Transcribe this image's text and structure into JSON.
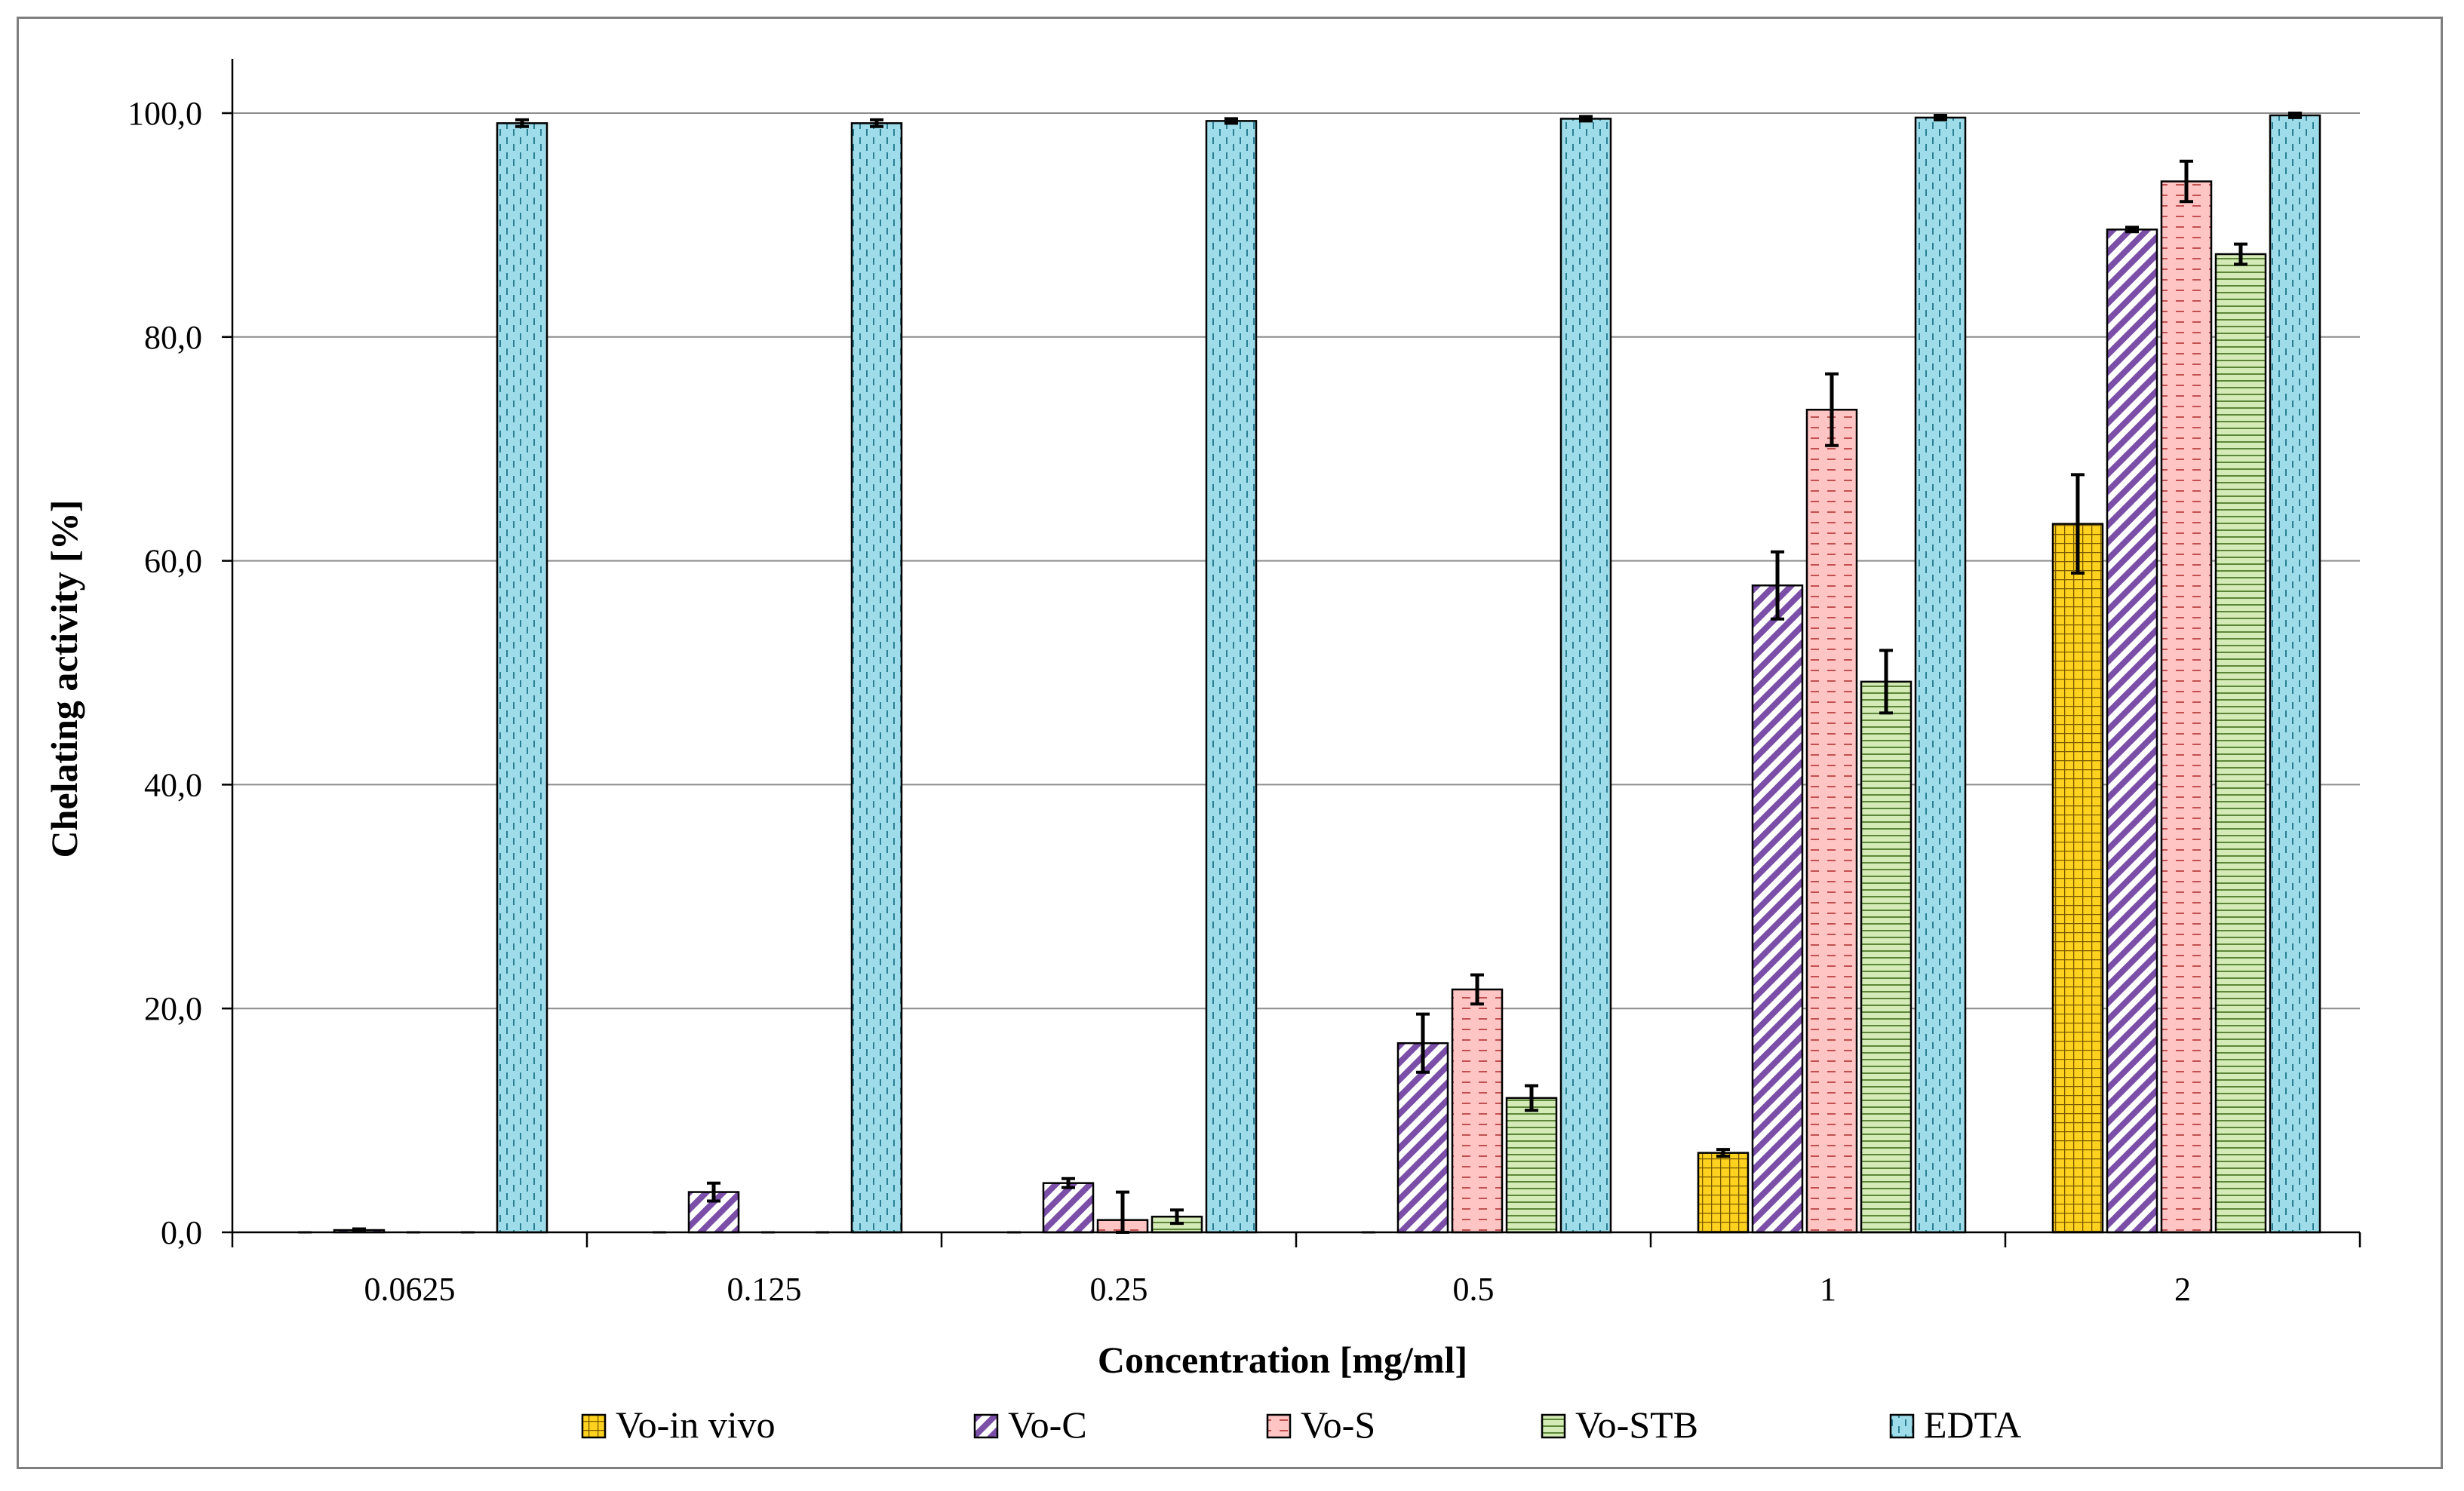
{
  "chart_data": {
    "type": "bar",
    "xlabel": "Concentration [mg/ml]",
    "ylabel": "Chelating activity  [%]",
    "ylim": [
      0,
      100
    ],
    "yticks": [
      0,
      20,
      40,
      60,
      80,
      100
    ],
    "ytick_labels": [
      "0,0",
      "20,0",
      "40,0",
      "60,0",
      "80,0",
      "100,0"
    ],
    "grid": "horizontal",
    "legend": "bottom",
    "categories": [
      "0.0625",
      "0.125",
      "0.25",
      "0.5",
      "1",
      "2"
    ],
    "series": [
      {
        "name": "Vo-in vivo",
        "values": [
          0,
          0,
          0,
          0,
          7.1,
          63.3
        ],
        "errors": [
          0,
          0,
          0,
          0,
          0.3,
          4.4
        ],
        "color": "#ffd21f",
        "pattern": "grid"
      },
      {
        "name": "Vo-C",
        "values": [
          0.2,
          3.6,
          4.4,
          16.9,
          57.8,
          89.6
        ],
        "errors": [
          0.1,
          0.8,
          0.4,
          2.6,
          3.0,
          0.2
        ],
        "color": "#c9b6e8",
        "pattern": "diagonal"
      },
      {
        "name": "Vo-S",
        "values": [
          0,
          0,
          1.1,
          21.7,
          73.5,
          93.9
        ],
        "errors": [
          0,
          0,
          2.5,
          1.3,
          3.2,
          1.8
        ],
        "color": "#ffc4c4",
        "pattern": "dashes"
      },
      {
        "name": "Vo-STB",
        "values": [
          0,
          0,
          1.4,
          12.0,
          49.2,
          87.4
        ],
        "errors": [
          0,
          0,
          0.6,
          1.1,
          2.8,
          0.9
        ],
        "color": "#d4ebb8",
        "pattern": "horizontal"
      },
      {
        "name": "EDTA",
        "values": [
          99.1,
          99.1,
          99.3,
          99.5,
          99.6,
          99.8
        ],
        "errors": [
          0.3,
          0.3,
          0.2,
          0.2,
          0.2,
          0.2
        ],
        "color": "#9fdcea",
        "pattern": "vertical-dashes"
      }
    ]
  }
}
